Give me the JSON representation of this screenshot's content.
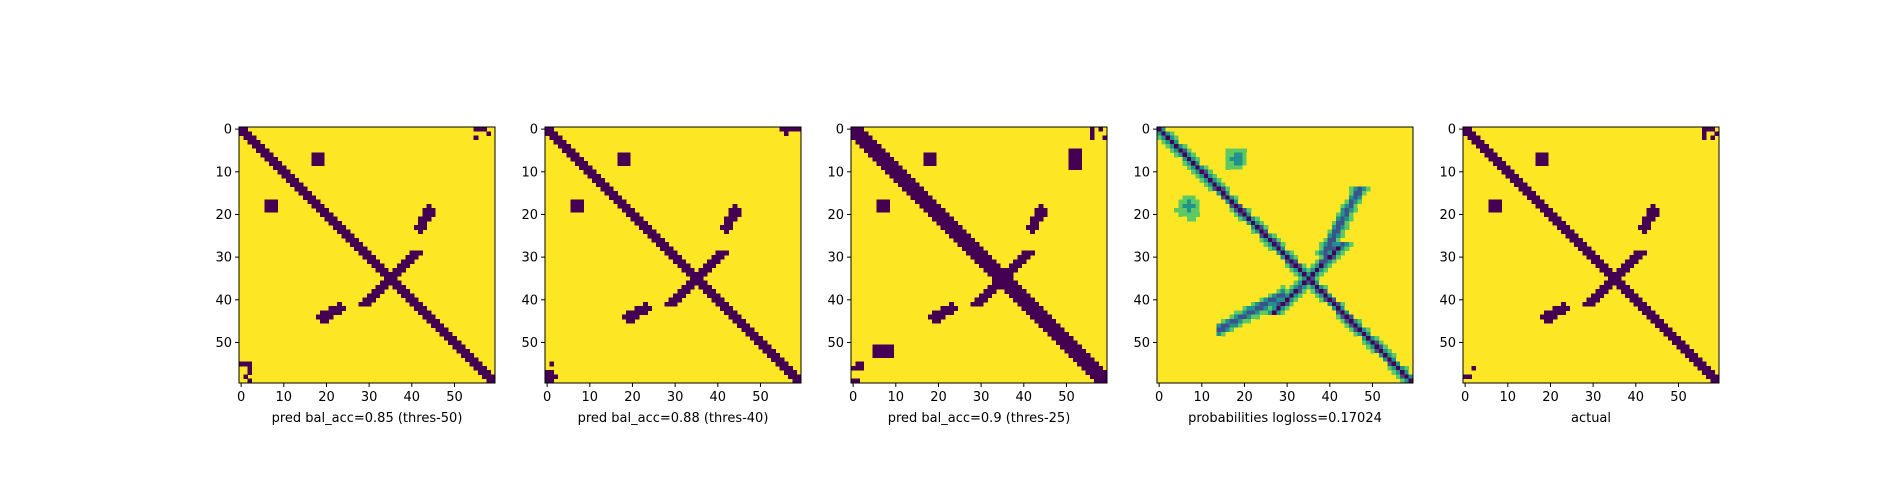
{
  "chart_data": {
    "type": "heatmap",
    "size": [
      60,
      60
    ],
    "colormap": [
      "#440154",
      "#3b528b",
      "#21918c",
      "#5ec962",
      "#fde725"
    ],
    "ticks": [
      0,
      10,
      20,
      30,
      40,
      50
    ],
    "panels": [
      {
        "kind": "binary",
        "xlabel": "pred bal_acc=0.85 (thres-50)"
      },
      {
        "kind": "binary",
        "xlabel": "pred bal_acc=0.88 (thres-40)"
      },
      {
        "kind": "binary",
        "xlabel": "pred bal_acc=0.9 (thres-25)"
      },
      {
        "kind": "probability",
        "xlabel": "probabilities logloss=0.17024"
      },
      {
        "kind": "binary",
        "xlabel": "actual"
      }
    ]
  }
}
